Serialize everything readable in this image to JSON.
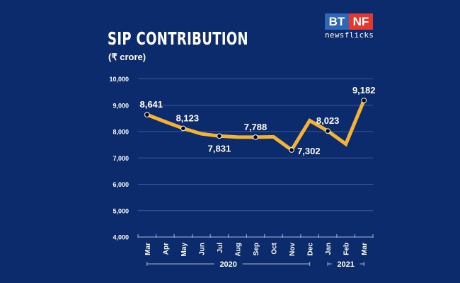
{
  "header": {
    "title": "SIP CONTRIBUTION",
    "subtitle": "(₹ crore)"
  },
  "logo": {
    "left": "BT",
    "right": "NF",
    "tagline": "newsflicks"
  },
  "colors": {
    "background": "#0b2b6c",
    "line": "#f5b335",
    "grid": "#3d5a94",
    "text": "#ffffff"
  },
  "chart_data": {
    "type": "line",
    "title": "SIP CONTRIBUTION",
    "ylabel": "(₹ crore)",
    "categories": [
      "Mar",
      "Apr",
      "May",
      "Jun",
      "Jul",
      "Aug",
      "Sep",
      "Oct",
      "Nov",
      "Dec",
      "Jan",
      "Feb",
      "Mar"
    ],
    "year_groups": [
      {
        "label": "2020",
        "from": 0,
        "to": 9
      },
      {
        "label": "2021",
        "from": 10,
        "to": 12
      }
    ],
    "values": [
      8641,
      8376,
      8123,
      7917,
      7831,
      7792,
      7788,
      7800,
      7302,
      8418,
      8023,
      7528,
      9182
    ],
    "labels": [
      "8,641",
      "",
      "8,123",
      "",
      "7,831",
      "",
      "7,788",
      "",
      "7,302",
      "",
      "8,023",
      "",
      "9,182"
    ],
    "marked": [
      true,
      false,
      true,
      false,
      true,
      false,
      true,
      false,
      true,
      false,
      true,
      false,
      true
    ],
    "yticks": [
      4000,
      5000,
      6000,
      7000,
      8000,
      9000,
      10000
    ],
    "ytick_labels": [
      "4,000",
      "5,000",
      "6,000",
      "7,000",
      "8,000",
      "9,000",
      "10,000"
    ],
    "ylim": [
      4000,
      10000
    ],
    "grid": true
  }
}
